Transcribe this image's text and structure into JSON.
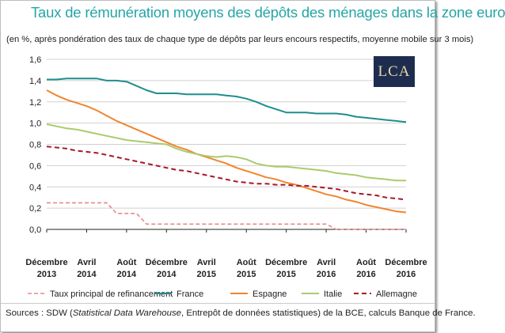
{
  "title": "Taux de rémunération moyens des dépôts des ménages dans la zone euro",
  "subtitle": "(en %, après pondération des taux de chaque type de dépôts par leurs encours respectifs, moyenne mobile sur 3 mois)",
  "logo_text": "LCA",
  "sources": {
    "prefix": "Sources : SDW (",
    "italic": "Statistical Data Warehouse",
    "suffix": ", Entrepôt de données statistiques) de la BCE, calculs Banque de France."
  },
  "chart_data": {
    "type": "line",
    "title": "Taux de rémunération moyens des dépôts des ménages dans la zone euro",
    "ylim": [
      0,
      1.6
    ],
    "y_ticks": [
      "0,0",
      "0,2",
      "0,4",
      "0,6",
      "0,8",
      "1,0",
      "1,2",
      "1,4",
      "1,6"
    ],
    "grid": true,
    "legend_position": "bottom",
    "x": [
      "Décembre 2013",
      "Avril 2014",
      "Août 2014",
      "Décembre 2014",
      "Avril 2015",
      "Août 2015",
      "Décembre 2015",
      "Avril 2016",
      "Août 2016",
      "Décembre 2016"
    ],
    "x_tick_labels": [
      [
        "Décembre",
        "2013"
      ],
      [
        "Avril",
        "2014"
      ],
      [
        "Août",
        "2014"
      ],
      [
        "Décembre",
        "2014"
      ],
      [
        "Avril",
        "2015"
      ],
      [
        "Août",
        "2015"
      ],
      [
        "Décembre",
        "2015"
      ],
      [
        "Avril",
        "2016"
      ],
      [
        "Août",
        "2016"
      ],
      [
        "Décembre",
        "2016"
      ]
    ],
    "series": [
      {
        "name": "Taux principal de refinancement",
        "color": "#e8888a",
        "dash": "dashed",
        "points": [
          [
            0,
            0.25
          ],
          [
            6,
            0.25
          ],
          [
            7,
            0.15
          ],
          [
            9,
            0.15
          ],
          [
            10,
            0.05
          ],
          [
            28,
            0.05
          ],
          [
            29,
            0.0
          ],
          [
            36,
            0.0
          ]
        ]
      },
      {
        "name": "France",
        "color": "#1f8d8e",
        "dash": "solid",
        "points": [
          [
            0,
            1.41
          ],
          [
            1,
            1.41
          ],
          [
            2,
            1.42
          ],
          [
            3,
            1.42
          ],
          [
            4,
            1.42
          ],
          [
            5,
            1.42
          ],
          [
            6,
            1.4
          ],
          [
            7,
            1.4
          ],
          [
            8,
            1.39
          ],
          [
            9,
            1.35
          ],
          [
            10,
            1.31
          ],
          [
            11,
            1.28
          ],
          [
            12,
            1.28
          ],
          [
            13,
            1.28
          ],
          [
            14,
            1.27
          ],
          [
            15,
            1.27
          ],
          [
            16,
            1.27
          ],
          [
            17,
            1.27
          ],
          [
            18,
            1.26
          ],
          [
            19,
            1.25
          ],
          [
            20,
            1.23
          ],
          [
            21,
            1.2
          ],
          [
            22,
            1.16
          ],
          [
            23,
            1.13
          ],
          [
            24,
            1.1
          ],
          [
            25,
            1.1
          ],
          [
            26,
            1.1
          ],
          [
            27,
            1.09
          ],
          [
            28,
            1.09
          ],
          [
            29,
            1.09
          ],
          [
            30,
            1.08
          ],
          [
            31,
            1.06
          ],
          [
            32,
            1.05
          ],
          [
            33,
            1.04
          ],
          [
            34,
            1.03
          ],
          [
            35,
            1.02
          ],
          [
            36,
            1.01
          ]
        ]
      },
      {
        "name": "Espagne",
        "color": "#f0852d",
        "dash": "solid",
        "points": [
          [
            0,
            1.31
          ],
          [
            1,
            1.26
          ],
          [
            2,
            1.22
          ],
          [
            3,
            1.19
          ],
          [
            4,
            1.16
          ],
          [
            5,
            1.12
          ],
          [
            6,
            1.07
          ],
          [
            7,
            1.02
          ],
          [
            8,
            0.98
          ],
          [
            9,
            0.94
          ],
          [
            10,
            0.9
          ],
          [
            11,
            0.86
          ],
          [
            12,
            0.82
          ],
          [
            13,
            0.78
          ],
          [
            14,
            0.75
          ],
          [
            15,
            0.71
          ],
          [
            16,
            0.68
          ],
          [
            17,
            0.65
          ],
          [
            18,
            0.62
          ],
          [
            19,
            0.58
          ],
          [
            20,
            0.55
          ],
          [
            21,
            0.52
          ],
          [
            22,
            0.49
          ],
          [
            23,
            0.47
          ],
          [
            24,
            0.44
          ],
          [
            25,
            0.42
          ],
          [
            26,
            0.39
          ],
          [
            27,
            0.36
          ],
          [
            28,
            0.33
          ],
          [
            29,
            0.31
          ],
          [
            30,
            0.28
          ],
          [
            31,
            0.26
          ],
          [
            32,
            0.23
          ],
          [
            33,
            0.21
          ],
          [
            34,
            0.19
          ],
          [
            35,
            0.17
          ],
          [
            36,
            0.16
          ]
        ]
      },
      {
        "name": "Italie",
        "color": "#aacb6e",
        "dash": "solid",
        "points": [
          [
            0,
            0.99
          ],
          [
            1,
            0.97
          ],
          [
            2,
            0.95
          ],
          [
            3,
            0.94
          ],
          [
            4,
            0.92
          ],
          [
            5,
            0.9
          ],
          [
            6,
            0.88
          ],
          [
            7,
            0.86
          ],
          [
            8,
            0.84
          ],
          [
            9,
            0.83
          ],
          [
            10,
            0.82
          ],
          [
            11,
            0.81
          ],
          [
            12,
            0.8
          ],
          [
            13,
            0.76
          ],
          [
            14,
            0.73
          ],
          [
            15,
            0.71
          ],
          [
            16,
            0.69
          ],
          [
            17,
            0.68
          ],
          [
            18,
            0.69
          ],
          [
            19,
            0.68
          ],
          [
            20,
            0.66
          ],
          [
            21,
            0.62
          ],
          [
            22,
            0.6
          ],
          [
            23,
            0.59
          ],
          [
            24,
            0.59
          ],
          [
            25,
            0.58
          ],
          [
            26,
            0.57
          ],
          [
            27,
            0.56
          ],
          [
            28,
            0.55
          ],
          [
            29,
            0.53
          ],
          [
            30,
            0.52
          ],
          [
            31,
            0.51
          ],
          [
            32,
            0.49
          ],
          [
            33,
            0.48
          ],
          [
            34,
            0.47
          ],
          [
            35,
            0.46
          ],
          [
            36,
            0.46
          ]
        ]
      },
      {
        "name": "Allemagne",
        "color": "#a8182a",
        "dash": "dashed",
        "points": [
          [
            0,
            0.78
          ],
          [
            1,
            0.77
          ],
          [
            2,
            0.76
          ],
          [
            3,
            0.74
          ],
          [
            4,
            0.73
          ],
          [
            5,
            0.72
          ],
          [
            6,
            0.7
          ],
          [
            7,
            0.68
          ],
          [
            8,
            0.66
          ],
          [
            9,
            0.64
          ],
          [
            10,
            0.62
          ],
          [
            11,
            0.6
          ],
          [
            12,
            0.58
          ],
          [
            13,
            0.56
          ],
          [
            14,
            0.55
          ],
          [
            15,
            0.53
          ],
          [
            16,
            0.51
          ],
          [
            17,
            0.49
          ],
          [
            18,
            0.47
          ],
          [
            19,
            0.45
          ],
          [
            20,
            0.44
          ],
          [
            21,
            0.43
          ],
          [
            22,
            0.43
          ],
          [
            23,
            0.42
          ],
          [
            24,
            0.42
          ],
          [
            25,
            0.41
          ],
          [
            26,
            0.41
          ],
          [
            27,
            0.4
          ],
          [
            28,
            0.39
          ],
          [
            29,
            0.38
          ],
          [
            30,
            0.36
          ],
          [
            31,
            0.34
          ],
          [
            32,
            0.33
          ],
          [
            33,
            0.32
          ],
          [
            34,
            0.3
          ],
          [
            35,
            0.29
          ],
          [
            36,
            0.28
          ]
        ]
      }
    ]
  }
}
